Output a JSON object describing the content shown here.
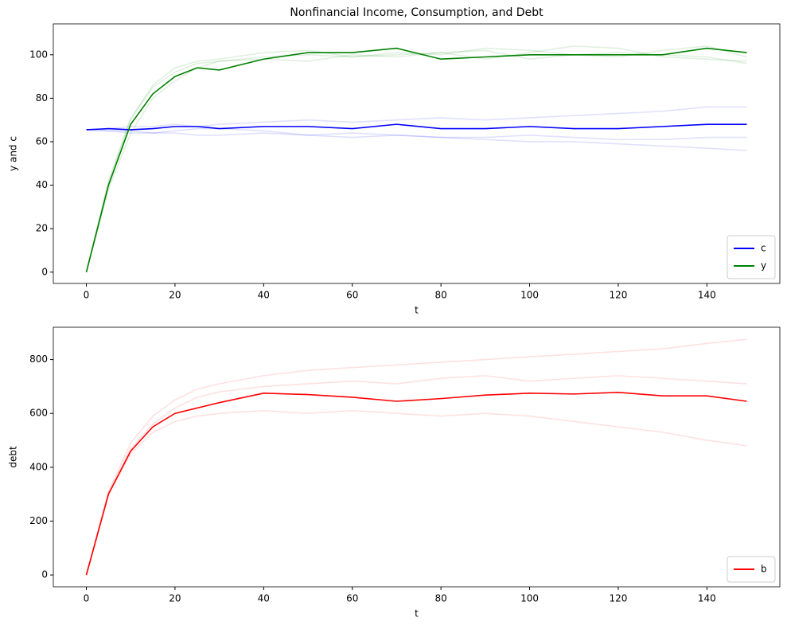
{
  "chart_data": [
    {
      "type": "line",
      "title": "Nonfinancial Income, Consumption, and Debt",
      "xlabel": "t",
      "ylabel": "y and c",
      "x": [
        0,
        5,
        10,
        15,
        20,
        25,
        30,
        40,
        50,
        60,
        70,
        80,
        90,
        100,
        110,
        120,
        130,
        140,
        149
      ],
      "series": [
        {
          "color": "rgba(0,128,0,0.12)",
          "values": [
            0,
            42,
            71,
            85,
            92,
            96,
            97,
            99,
            100,
            99,
            100,
            101,
            98,
            101,
            104,
            103,
            99,
            98,
            97
          ]
        },
        {
          "color": "rgba(0,128,0,0.12)",
          "values": [
            0,
            38,
            64,
            80,
            88,
            94,
            97,
            98,
            97,
            100,
            99,
            101,
            102,
            98,
            100,
            101,
            100,
            99,
            96
          ]
        },
        {
          "color": "rgba(0,128,0,0.12)",
          "values": [
            0,
            41,
            70,
            86,
            94,
            97,
            98,
            101,
            102,
            99,
            101,
            100,
            103,
            102,
            100,
            99,
            102,
            104,
            99
          ]
        },
        {
          "color": "rgba(0,0,255,0.12)",
          "values": [
            65.5,
            65,
            64,
            64,
            65,
            66,
            66,
            65,
            63,
            62,
            63,
            62,
            61,
            60,
            60,
            59,
            58,
            57,
            56
          ]
        },
        {
          "color": "rgba(0,0,255,0.12)",
          "values": [
            65.5,
            66,
            67,
            67,
            68,
            67,
            68,
            69,
            70,
            69,
            70,
            71,
            70,
            71,
            72,
            73,
            74,
            76,
            76
          ]
        },
        {
          "color": "rgba(0,0,255,0.12)",
          "values": [
            65.5,
            65,
            65,
            64,
            64,
            63,
            63,
            64,
            63,
            64,
            63,
            62,
            62,
            63,
            62,
            61,
            61,
            62,
            62
          ]
        },
        {
          "name": "c",
          "color": "#0000ff",
          "values": [
            65.5,
            66,
            65.5,
            66,
            67,
            67,
            66,
            67,
            67,
            66,
            68,
            66,
            66,
            67,
            66,
            66,
            67,
            68,
            68
          ]
        },
        {
          "name": "y",
          "color": "#008000",
          "values": [
            0,
            40,
            68,
            82,
            90,
            94,
            93,
            98,
            101,
            101,
            103,
            98,
            99,
            100,
            100,
            100,
            100,
            103,
            101
          ]
        }
      ],
      "xlim": [
        -7.45,
        156.45
      ],
      "ylim": [
        -5.2,
        114.2
      ],
      "xticks": [
        0,
        20,
        40,
        60,
        80,
        100,
        120,
        140
      ],
      "yticks": [
        0,
        20,
        40,
        60,
        80,
        100
      ],
      "legend": "lower right"
    },
    {
      "type": "line",
      "xlabel": "t",
      "ylabel": "debt",
      "x": [
        0,
        5,
        10,
        15,
        20,
        25,
        30,
        40,
        50,
        60,
        70,
        80,
        90,
        100,
        110,
        120,
        130,
        140,
        149
      ],
      "series": [
        {
          "color": "rgba(255,0,0,0.12)",
          "values": [
            0,
            310,
            490,
            590,
            650,
            690,
            710,
            740,
            760,
            770,
            780,
            790,
            800,
            810,
            820,
            830,
            840,
            860,
            875
          ]
        },
        {
          "color": "rgba(255,0,0,0.12)",
          "values": [
            0,
            300,
            450,
            530,
            570,
            590,
            600,
            610,
            600,
            610,
            600,
            590,
            600,
            590,
            570,
            550,
            530,
            500,
            480
          ]
        },
        {
          "color": "rgba(255,0,0,0.12)",
          "values": [
            0,
            305,
            470,
            560,
            620,
            660,
            680,
            700,
            710,
            720,
            710,
            730,
            740,
            720,
            730,
            740,
            730,
            720,
            710
          ]
        },
        {
          "name": "b",
          "color": "#ff0000",
          "values": [
            0,
            300,
            460,
            550,
            600,
            620,
            640,
            675,
            670,
            660,
            645,
            655,
            668,
            675,
            672,
            678,
            665,
            665,
            645
          ]
        }
      ],
      "xlim": [
        -7.45,
        156.45
      ],
      "ylim": [
        -44,
        920
      ],
      "xticks": [
        0,
        20,
        40,
        60,
        80,
        100,
        120,
        140
      ],
      "yticks": [
        0,
        200,
        400,
        600,
        800
      ],
      "legend": "lower right"
    }
  ]
}
